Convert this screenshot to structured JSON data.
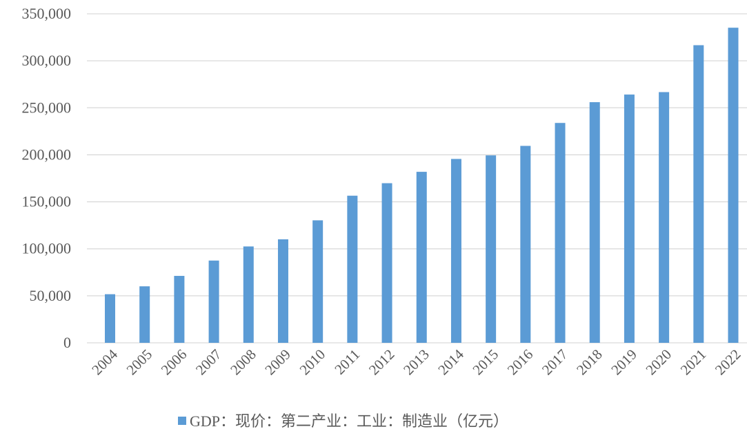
{
  "chart_data": {
    "type": "bar",
    "categories": [
      "2004",
      "2005",
      "2006",
      "2007",
      "2008",
      "2009",
      "2010",
      "2011",
      "2012",
      "2013",
      "2014",
      "2015",
      "2016",
      "2017",
      "2018",
      "2019",
      "2020",
      "2021",
      "2022"
    ],
    "series": [
      {
        "name": "GDP：现价：第二产业：工业：制造业（亿元）",
        "color": "#5b9bd5",
        "values": [
          51700,
          60100,
          71200,
          87500,
          102500,
          110100,
          130300,
          156500,
          169800,
          181900,
          195600,
          199400,
          209500,
          233900,
          256000,
          264100,
          266700,
          316600,
          335200
        ]
      }
    ],
    "ylim": [
      0,
      350000
    ],
    "yticks": [
      0,
      50000,
      100000,
      150000,
      200000,
      250000,
      300000,
      350000
    ],
    "ytick_labels": [
      "0",
      "50,000",
      "100,000",
      "150,000",
      "200,000",
      "250,000",
      "300,000",
      "350,000"
    ],
    "grid": true,
    "legend_position": "bottom",
    "title": "",
    "xlabel": "",
    "ylabel": ""
  }
}
